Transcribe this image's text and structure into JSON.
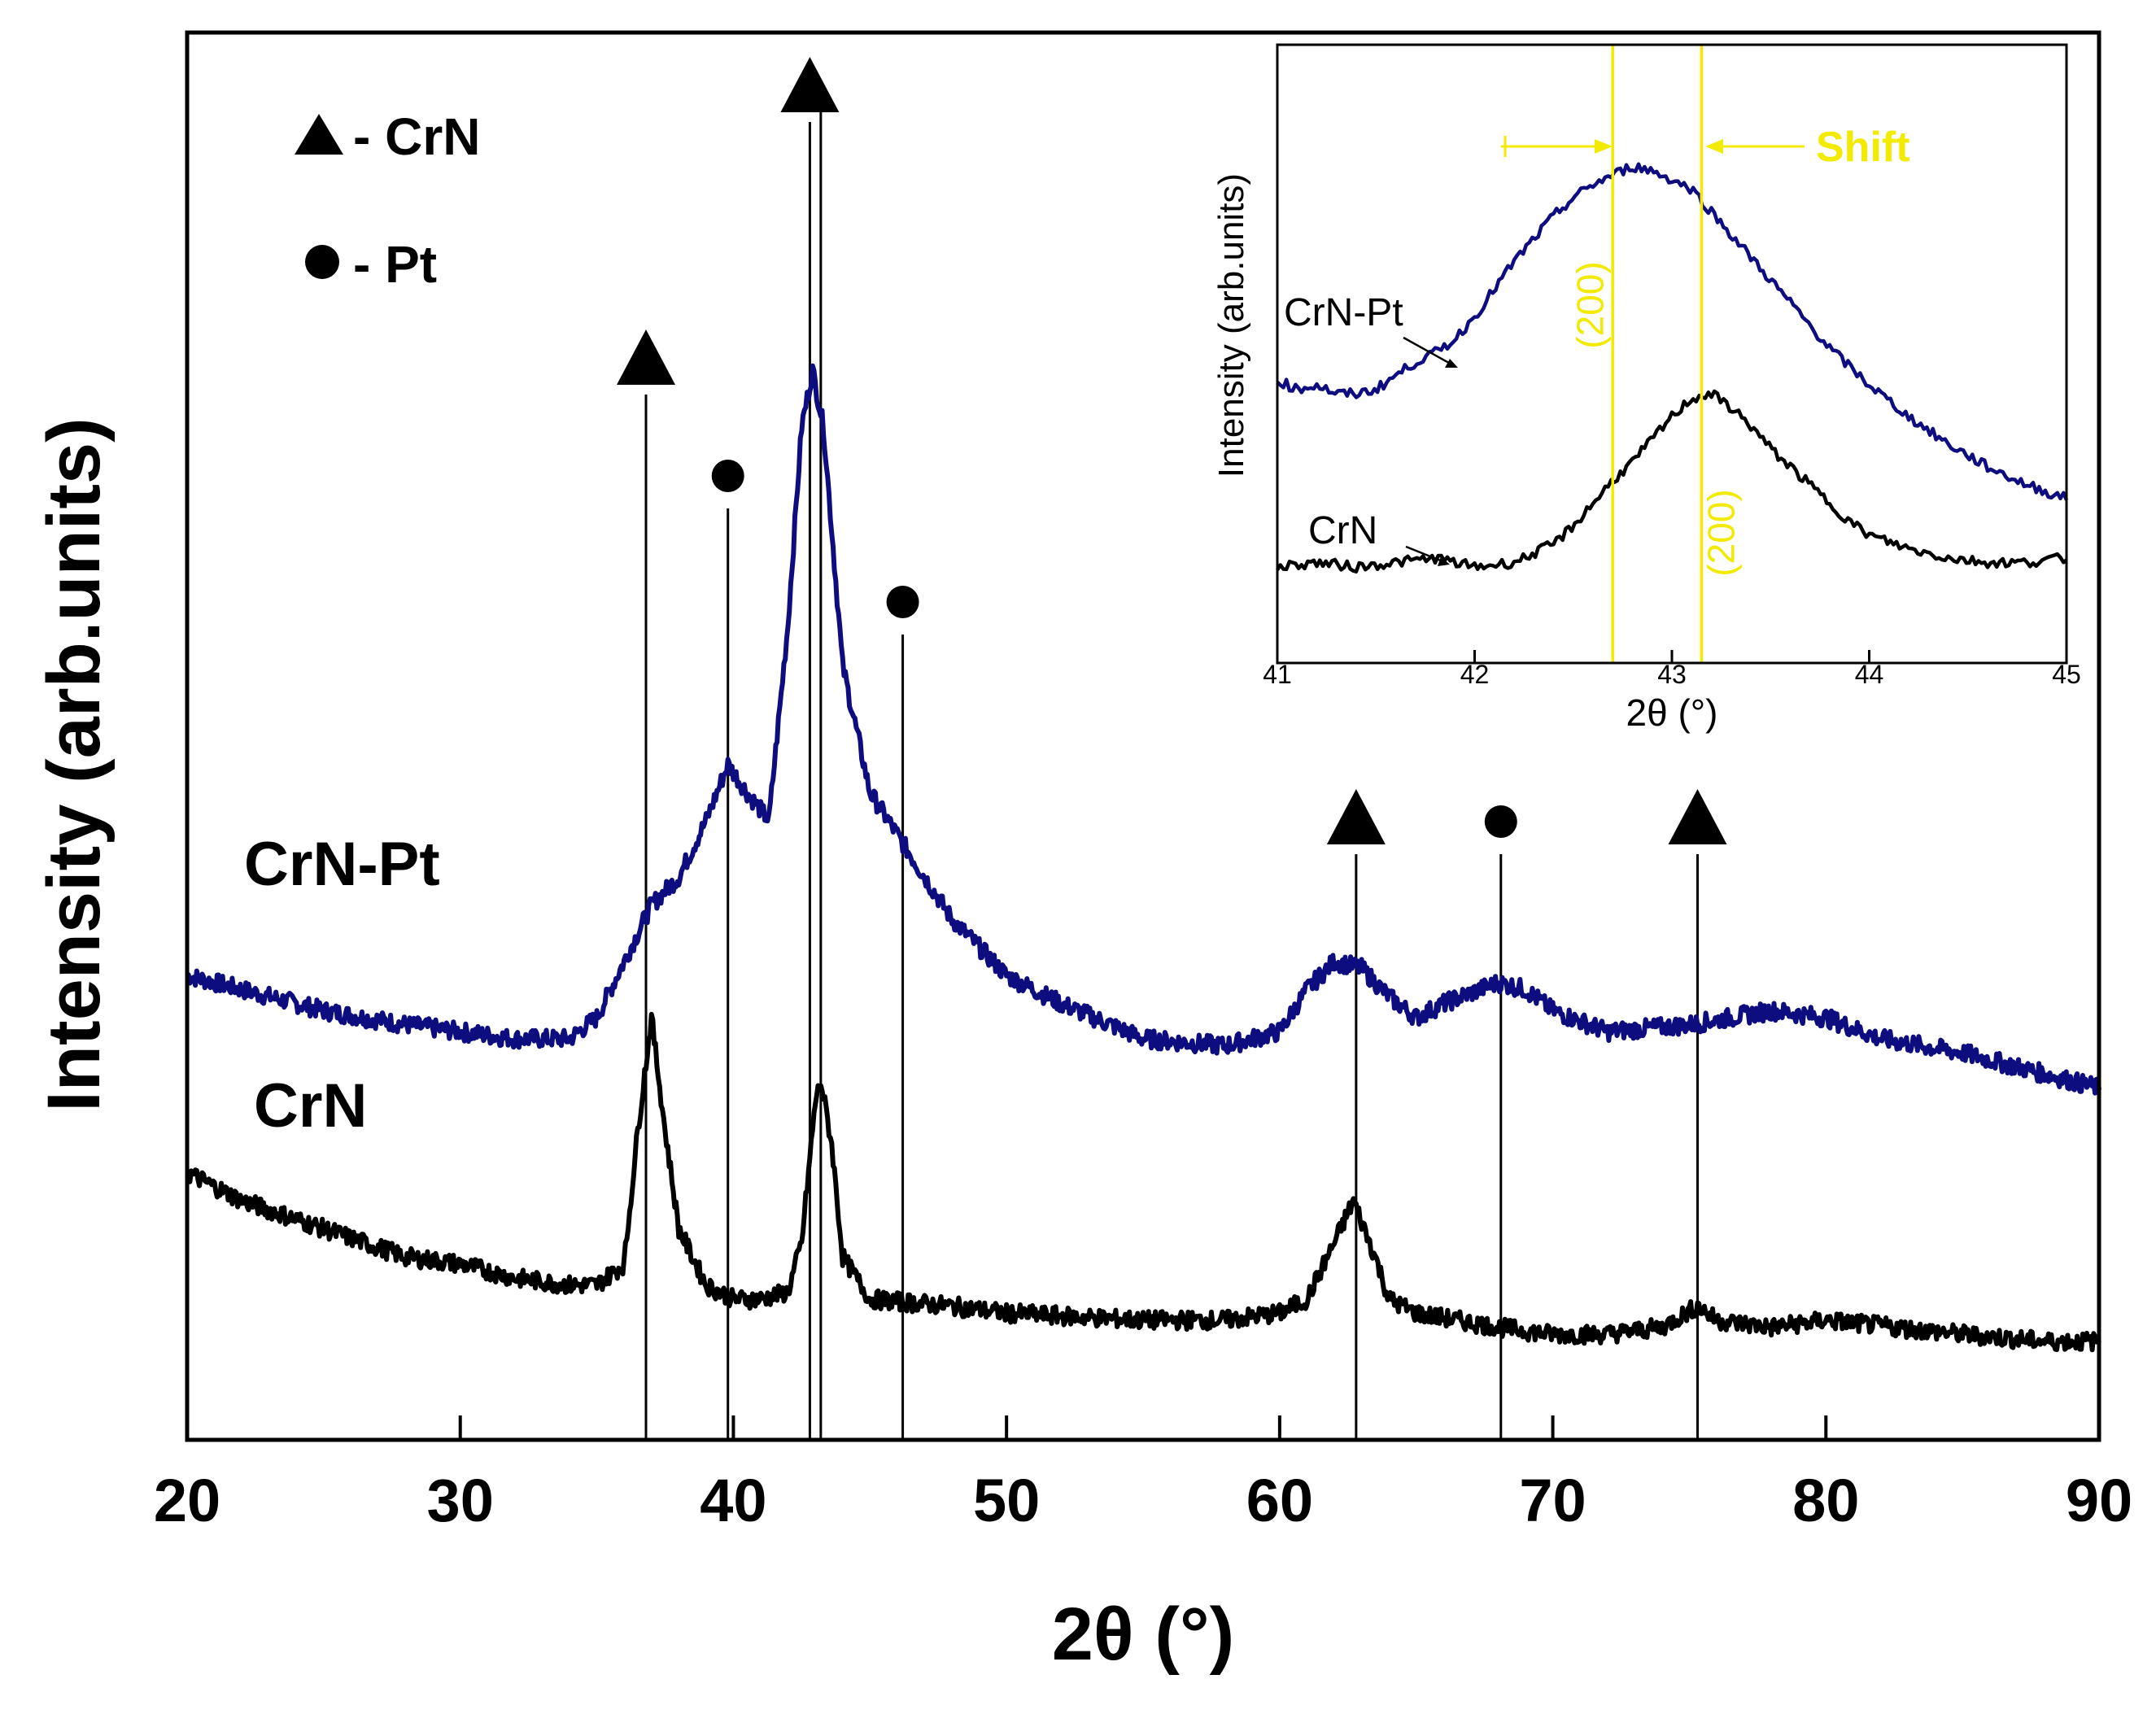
{
  "chart_data": [
    {
      "type": "line",
      "title": "",
      "xlabel": "2θ (°)",
      "ylabel": "Intensity (arb.units)",
      "xlim": [
        20,
        90
      ],
      "ylim": [
        0,
        100
      ],
      "xticks": [
        "20",
        "30",
        "40",
        "50",
        "60",
        "70",
        "80",
        "90"
      ],
      "legend": [
        {
          "marker": "triangle",
          "label": "- CrN"
        },
        {
          "marker": "circle",
          "label": "- Pt"
        }
      ],
      "series": [
        {
          "name": "CrN-Pt",
          "label": "CrN-Pt",
          "color": "#0d0d80",
          "x": [
            20,
            22,
            25,
            28,
            30,
            32,
            34,
            35,
            36,
            37,
            38,
            39,
            39.8,
            40.5,
            41.3,
            42,
            42.5,
            42.9,
            43.3,
            44,
            45,
            46,
            47,
            48,
            50,
            52,
            55,
            58,
            60,
            61,
            62,
            63,
            64,
            65,
            66,
            68,
            69,
            70,
            72,
            75,
            78,
            80,
            82,
            85,
            88,
            90
          ],
          "y": [
            33,
            32,
            30.5,
            29.5,
            29,
            28.5,
            28.5,
            30,
            34,
            38,
            40,
            44,
            48,
            46,
            44,
            58,
            72,
            76,
            72,
            55,
            46,
            43,
            40,
            37,
            33,
            31,
            28.5,
            28,
            29,
            32,
            34,
            33.5,
            31.5,
            30,
            31,
            32.5,
            32,
            30.5,
            29,
            29.5,
            30.5,
            30,
            28.5,
            27.5,
            26,
            25
          ]
        },
        {
          "name": "CrN",
          "label": "CrN",
          "color": "#000000",
          "x": [
            20,
            22,
            25,
            28,
            30,
            32,
            34,
            35,
            36,
            36.5,
            37,
            37.5,
            38,
            39,
            40,
            41,
            42,
            42.5,
            43,
            43.2,
            43.6,
            44,
            45,
            48,
            50,
            55,
            58,
            60,
            61,
            62,
            62.7,
            63.5,
            64,
            65,
            68,
            70,
            72,
            74,
            75.3,
            76,
            78,
            80,
            85,
            88,
            90
          ],
          "y": [
            19,
            17,
            15,
            13,
            12.5,
            11.5,
            11,
            11,
            12.5,
            22,
            30,
            22,
            15,
            11,
            10,
            10,
            10.5,
            14,
            24,
            25.5,
            21,
            13,
            10,
            9.5,
            9,
            8.5,
            8.5,
            9,
            10,
            14,
            17,
            13,
            10,
            9,
            8,
            7.5,
            7.5,
            8,
            9.5,
            8.5,
            8,
            8.5,
            7.5,
            7,
            7
          ]
        }
      ],
      "reference_lines": [
        {
          "phase": "CrN",
          "x": 36.8,
          "marker": "triangle"
        },
        {
          "phase": "Pt",
          "x": 39.8,
          "marker": "circle"
        },
        {
          "phase": "CrN",
          "x": 42.8,
          "marker": "triangle"
        },
        {
          "phase": "CrN",
          "x": 43.2,
          "marker": "none"
        },
        {
          "phase": "Pt",
          "x": 46.2,
          "marker": "circle"
        },
        {
          "phase": "CrN",
          "x": 62.8,
          "marker": "triangle"
        },
        {
          "phase": "Pt",
          "x": 68.1,
          "marker": "circle"
        },
        {
          "phase": "CrN",
          "x": 75.3,
          "marker": "triangle"
        }
      ],
      "reference_tops": [
        0,
        0,
        1,
        1,
        0,
        0,
        0,
        0
      ]
    },
    {
      "type": "line",
      "title": "",
      "xlabel": "2θ (°)",
      "ylabel": "Intensity (arb.units)",
      "xlim": [
        41,
        45
      ],
      "ylim": [
        0,
        100
      ],
      "xticks": [
        "41",
        "42",
        "43",
        "44",
        "45"
      ],
      "series": [
        {
          "name": "CrN-Pt",
          "label": "CrN-Pt",
          "color": "#0d0d80",
          "x": [
            41,
            41.1,
            41.2,
            41.3,
            41.4,
            41.5,
            41.6,
            41.7,
            41.8,
            41.9,
            42,
            42.1,
            42.2,
            42.3,
            42.4,
            42.5,
            42.6,
            42.7,
            42.8,
            42.9,
            43,
            43.1,
            43.2,
            43.3,
            43.4,
            43.5,
            43.6,
            43.7,
            43.8,
            43.9,
            44,
            44.2,
            44.4,
            44.6,
            44.8,
            45
          ],
          "y": [
            46,
            44,
            45,
            43,
            43,
            44,
            47,
            50,
            52,
            55,
            60,
            66,
            72,
            77,
            82,
            86,
            89,
            91,
            93,
            92,
            90,
            88,
            83,
            78,
            73,
            68,
            63,
            58,
            53,
            49,
            45,
            38,
            32,
            27,
            23,
            20
          ]
        },
        {
          "name": "CrN",
          "label": "CrN",
          "color": "#000000",
          "x": [
            41,
            41.2,
            41.4,
            41.6,
            41.8,
            42,
            42.2,
            42.4,
            42.5,
            42.6,
            42.7,
            42.8,
            42.9,
            43,
            43.1,
            43.2,
            43.3,
            43.4,
            43.5,
            43.6,
            43.7,
            43.8,
            43.9,
            44,
            44.2,
            44.4,
            44.6,
            44.8,
            45
          ],
          "y": [
            5,
            6,
            5,
            6,
            7,
            5,
            6,
            10,
            14,
            19,
            24,
            28,
            33,
            38,
            42,
            43,
            40,
            36,
            31,
            27,
            23,
            19,
            15,
            12,
            9,
            7,
            6,
            6,
            7
          ]
        }
      ],
      "markers": [
        {
          "x": 42.7,
          "label": "(200)",
          "color": "#f2ea00"
        },
        {
          "x": 43.15,
          "label": "(200)",
          "color": "#f2ea00"
        }
      ],
      "annotation": {
        "text": "Shift",
        "color": "#f2ea00"
      }
    }
  ]
}
